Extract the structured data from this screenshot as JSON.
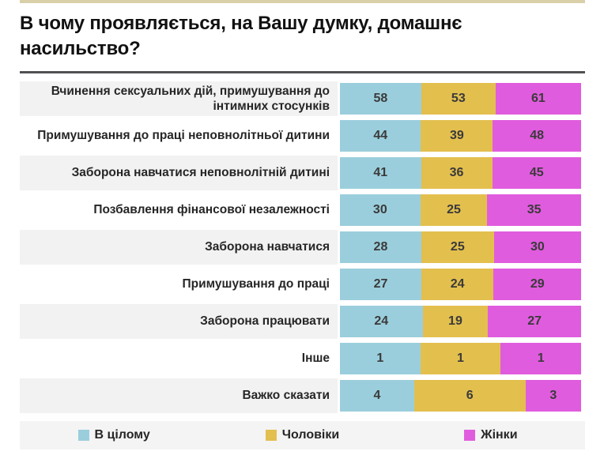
{
  "header": {
    "title": "В чому проявляється, на Вашу думку, домашнє насильство?"
  },
  "colors": {
    "overall": "#9BCEDC",
    "men": "#E3BF4E",
    "women": "#E05CDE",
    "row_alt_bg": "#F2F2F2",
    "legend_bg": "#F4F4F4",
    "top_rule": "#D9CFA9",
    "title_rule": "#515154",
    "value_text": "#3A3A3A"
  },
  "legend": {
    "items": [
      {
        "label": "В цілому",
        "series_key": "overall"
      },
      {
        "label": "Чоловіки",
        "series_key": "men"
      },
      {
        "label": "Жінки",
        "series_key": "women"
      }
    ]
  },
  "chart_data": {
    "type": "bar",
    "variant": "horizontal-stacked-100percent",
    "title": "В чому проявляється, на Вашу думку, домашнє насильство?",
    "value_labels": "inside-center",
    "legend_position": "bottom",
    "grid": false,
    "categories": [
      "Вчинення сексуальних дій, примушування до інтимних стосунків",
      "Примушування до праці неповнолітньої дитини",
      "Заборона навчатися неповнолітній дитині",
      "Позбавлення фінансової незалежності",
      "Заборона навчатися",
      "Примушування до праці",
      "Заборона працювати",
      "Інше",
      "Важко сказати"
    ],
    "series": [
      {
        "name": "В цілому",
        "key": "overall",
        "color": "#9BCEDC",
        "values": [
          58,
          44,
          41,
          30,
          28,
          27,
          24,
          1,
          4
        ]
      },
      {
        "name": "Чоловіки",
        "key": "men",
        "color": "#E3BF4E",
        "values": [
          53,
          39,
          36,
          25,
          25,
          24,
          19,
          1,
          6
        ]
      },
      {
        "name": "Жінки",
        "key": "women",
        "color": "#E05CDE",
        "values": [
          61,
          48,
          45,
          35,
          30,
          29,
          27,
          1,
          3
        ]
      }
    ]
  }
}
